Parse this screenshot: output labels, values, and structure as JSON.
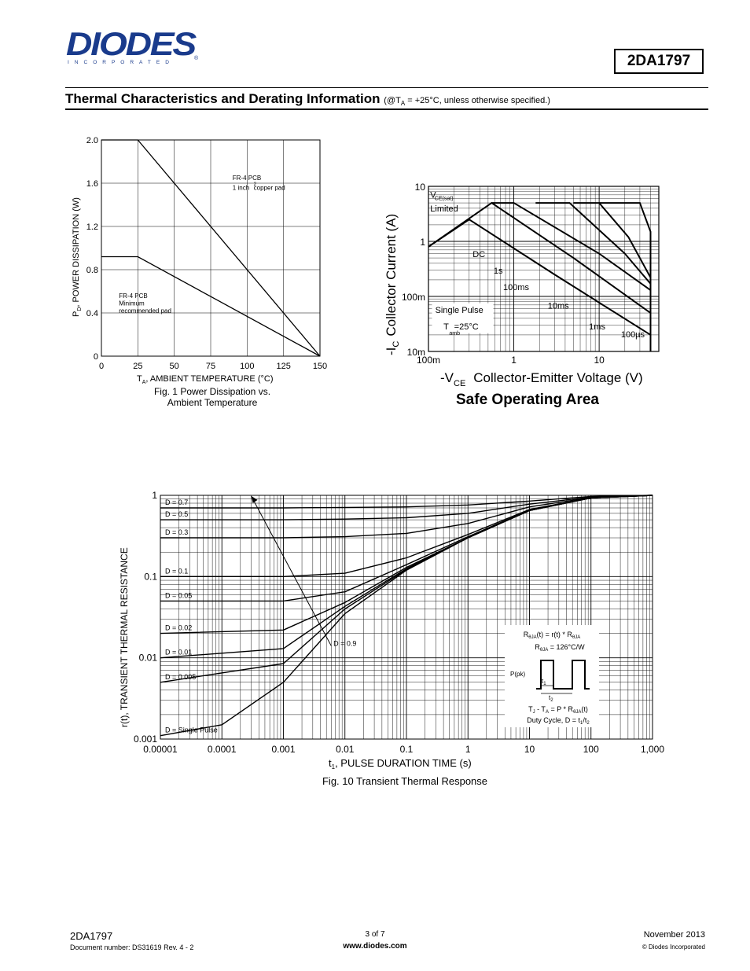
{
  "header": {
    "logo_text": "DIODES",
    "logo_subtext": "INCORPORATED",
    "part_number": "2DA1797"
  },
  "section": {
    "title": "Thermal Characteristics and Derating Information",
    "condition_prefix": "(@T",
    "condition_sub": "A",
    "condition_suffix": " = +25°C, unless otherwise specified.)"
  },
  "footer": {
    "part": "2DA1797",
    "doc_number": "Document number: DS31619  Rev. 4 - 2",
    "page": "3 of 7",
    "url": "www.diodes.com",
    "date": "November 2013",
    "copyright": "© Diodes Incorporated"
  },
  "colors": {
    "ink": "#000000",
    "grid": "#000000",
    "brand": "#1a3b8c"
  },
  "chart_data": [
    {
      "type": "line",
      "caption_line1": "Fig. 1 Power Dissipation vs.",
      "caption_line2": "Ambient Temperature",
      "xlabel_main": "T",
      "xlabel_sub": "A",
      "xlabel_rest": ", AMBIENT TEMPERATURE (°C)",
      "ylabel_main": "P",
      "ylabel_sub": "D",
      "ylabel_rest": ", POWER DISSIPATION (W)",
      "xlim": [
        0,
        150
      ],
      "ylim": [
        0,
        2.0
      ],
      "xticks": [
        0,
        25,
        50,
        75,
        100,
        125,
        150
      ],
      "xtick_labels": [
        "0",
        "25",
        "50",
        "75",
        "100",
        "125",
        "150"
      ],
      "yticks": [
        0,
        0.4,
        0.8,
        1.2,
        1.6,
        2.0
      ],
      "ytick_labels": [
        "0",
        "0.4",
        "0.8",
        "1.2",
        "1.6",
        "2.0"
      ],
      "grid": true,
      "series": [
        {
          "x": [
            0,
            25,
            150
          ],
          "y": [
            2.0,
            2.0,
            0
          ]
        },
        {
          "x": [
            0,
            25,
            150
          ],
          "y": [
            0.92,
            0.92,
            0
          ]
        }
      ],
      "annotations": [
        {
          "text": "FR-4 PCB",
          "x": 90,
          "y": 1.63
        },
        {
          "text": "1 inch",
          "x": 90,
          "y": 1.54
        },
        {
          "text": "2",
          "x": 104.5,
          "y": 1.58
        },
        {
          "text": " copper pad",
          "x": 104.5,
          "y": 1.54
        },
        {
          "text": "FR-4 PCB",
          "x": 12,
          "y": 0.54
        },
        {
          "text": "Minimum",
          "x": 12,
          "y": 0.47
        },
        {
          "text": "recommended pad",
          "x": 12,
          "y": 0.4
        }
      ]
    },
    {
      "type": "line",
      "title": "Safe Operating Area",
      "xlabel_main": "-V",
      "xlabel_sub": "CE",
      "xlabel_rest": "Collector-Emitter Voltage (V)",
      "ylabel_main": "-I",
      "ylabel_sub": "C",
      "ylabel_rest": "Collector Current (A)",
      "xscale": "log",
      "yscale": "log",
      "xlim": [
        0.1,
        50
      ],
      "ylim": [
        0.01,
        10
      ],
      "xticks": [
        0.1,
        1,
        10
      ],
      "xtick_labels": [
        "100m",
        "1",
        "10"
      ],
      "yticks": [
        0.01,
        0.1,
        1,
        10
      ],
      "ytick_labels": [
        "10m",
        "100m",
        "1",
        "10"
      ],
      "grid": true,
      "series": [
        {
          "name": "DC",
          "x": [
            0.1,
            0.3,
            3,
            40
          ],
          "y": [
            0.8,
            2.5,
            0.25,
            0.02
          ]
        },
        {
          "name": "1s",
          "x": [
            0.1,
            0.55,
            5,
            40
          ],
          "y": [
            0.8,
            5,
            0.5,
            0.05
          ]
        },
        {
          "name": "100ms",
          "x": [
            0.55,
            1,
            10,
            40
          ],
          "y": [
            5,
            5,
            0.6,
            0.13
          ]
        },
        {
          "name": "10ms",
          "x": [
            1.8,
            4.5,
            20,
            40
          ],
          "y": [
            5,
            5,
            0.6,
            0.17
          ]
        },
        {
          "name": "1ms",
          "x": [
            5,
            10,
            22,
            40
          ],
          "y": [
            5,
            5,
            1.2,
            0.22
          ]
        },
        {
          "name": "100µs",
          "x": [
            10,
            30,
            40,
            40
          ],
          "y": [
            5,
            5,
            1.5,
            0.01
          ]
        }
      ],
      "annotations": [
        {
          "text": "V",
          "x": 0.105,
          "y": 6.2
        },
        {
          "text": "CE(sat)",
          "x": 0.118,
          "y": 5.6
        },
        {
          "text": "Limited",
          "x": 0.105,
          "y": 3.5
        },
        {
          "text": "DC",
          "x": 0.33,
          "y": 0.52
        },
        {
          "text": "1s",
          "x": 0.58,
          "y": 0.26
        },
        {
          "text": "100ms",
          "x": 0.75,
          "y": 0.13
        },
        {
          "text": "10ms",
          "x": 2.5,
          "y": 0.06
        },
        {
          "text": "1ms",
          "x": 7.6,
          "y": 0.025
        },
        {
          "text": "100µs",
          "x": 18,
          "y": 0.018
        },
        {
          "text": "Single Pulse",
          "x": 0.12,
          "y": 0.05
        },
        {
          "text": "T",
          "x": 0.15,
          "y": 0.025
        },
        {
          "text": "amb",
          "x": 0.175,
          "y": 0.02
        },
        {
          "text": "=25°C",
          "x": 0.2,
          "y": 0.025
        }
      ]
    },
    {
      "type": "line",
      "caption": "Fig. 10 Transient Thermal Response",
      "xlabel_main": "t",
      "xlabel_sub": "1",
      "xlabel_rest": ", PULSE DURATION TIME (s)",
      "ylabel": "r(t), TRANSIENT THERMAL RESISTANCE",
      "xscale": "log",
      "yscale": "log",
      "xlim": [
        1e-05,
        1000
      ],
      "ylim": [
        0.001,
        1
      ],
      "xticks": [
        1e-05,
        0.0001,
        0.001,
        0.01,
        0.1,
        1,
        10,
        100,
        1000
      ],
      "xtick_labels": [
        "0.00001",
        "0.0001",
        "0.001",
        "0.01",
        "0.1",
        "1",
        "10",
        "100",
        "1,000"
      ],
      "yticks": [
        0.001,
        0.01,
        0.1,
        1
      ],
      "ytick_labels": [
        "0.001",
        "0.01",
        "0.1",
        "1"
      ],
      "grid": true,
      "series": [
        {
          "name": "D = 0.7",
          "x": [
            1e-05,
            0.001,
            0.01,
            0.1,
            1,
            10,
            100,
            1000
          ],
          "y": [
            0.7,
            0.7,
            0.71,
            0.72,
            0.76,
            0.85,
            0.97,
            1.0
          ]
        },
        {
          "name": "D = 0.5",
          "x": [
            1e-05,
            0.001,
            0.01,
            0.1,
            1,
            10,
            100,
            1000
          ],
          "y": [
            0.5,
            0.5,
            0.51,
            0.53,
            0.6,
            0.78,
            0.95,
            1.0
          ]
        },
        {
          "name": "D = 0.3",
          "x": [
            1e-05,
            0.001,
            0.01,
            0.1,
            1,
            10,
            100,
            1000
          ],
          "y": [
            0.3,
            0.3,
            0.31,
            0.34,
            0.45,
            0.72,
            0.94,
            1.0
          ]
        },
        {
          "name": "D = 0.1",
          "x": [
            1e-05,
            0.001,
            0.01,
            0.1,
            1,
            10,
            100,
            1000
          ],
          "y": [
            0.1,
            0.1,
            0.11,
            0.17,
            0.33,
            0.67,
            0.93,
            1.0
          ]
        },
        {
          "name": "D = 0.05",
          "x": [
            1e-05,
            0.001,
            0.01,
            0.1,
            1,
            10,
            100,
            1000
          ],
          "y": [
            0.05,
            0.05,
            0.065,
            0.14,
            0.31,
            0.66,
            0.93,
            1.0
          ]
        },
        {
          "name": "D = 0.02",
          "x": [
            1e-05,
            0.001,
            0.01,
            0.1,
            1,
            10,
            100,
            1000
          ],
          "y": [
            0.02,
            0.022,
            0.048,
            0.13,
            0.3,
            0.65,
            0.93,
            1.0
          ]
        },
        {
          "name": "D = 0.01",
          "x": [
            1e-05,
            0.001,
            0.01,
            0.1,
            1,
            10,
            100,
            1000
          ],
          "y": [
            0.01,
            0.013,
            0.043,
            0.125,
            0.3,
            0.65,
            0.93,
            1.0
          ]
        },
        {
          "name": "D = 0.005",
          "x": [
            1e-05,
            0.001,
            0.01,
            0.1,
            1,
            10,
            100,
            1000
          ],
          "y": [
            0.005,
            0.0085,
            0.04,
            0.122,
            0.3,
            0.65,
            0.93,
            1.0
          ]
        },
        {
          "name": "D = Single Pulse",
          "x": [
            1e-05,
            0.0001,
            0.001,
            0.01,
            0.1,
            1,
            10,
            100,
            1000
          ],
          "y": [
            0.0011,
            0.0015,
            0.005,
            0.035,
            0.12,
            0.3,
            0.65,
            0.93,
            1.0
          ]
        }
      ],
      "series_label_positions": [
        0.7,
        0.5,
        0.3,
        0.1,
        0.05,
        0.02,
        0.01,
        0.005,
        0.0011
      ],
      "d09_label": "D = 0.9",
      "inset": {
        "line1_main": "R",
        "line1_sub": "θJA",
        "line1_rest": "(t) = r(t) * R",
        "line1_sub2": "θJA",
        "line2_main": "R",
        "line2_sub": "θJA",
        "line2_rest": " = 126°C/W",
        "ppk": "P(pk)",
        "t1": "t",
        "t1_sub": "1",
        "t2": "t",
        "t2_sub": "2",
        "line3": "T  - T  = P * R   (t)",
        "line3_a": "T",
        "line3_a_sub": "J",
        "line3_b": " - T",
        "line3_b_sub": "A",
        "line3_c": " = P * R",
        "line3_c_sub": "θJA",
        "line3_d": "(t)",
        "line4": "Duty Cycle, D = t",
        "line4_sub1": "1",
        "line4_mid": "/t",
        "line4_sub2": "2"
      }
    }
  ]
}
